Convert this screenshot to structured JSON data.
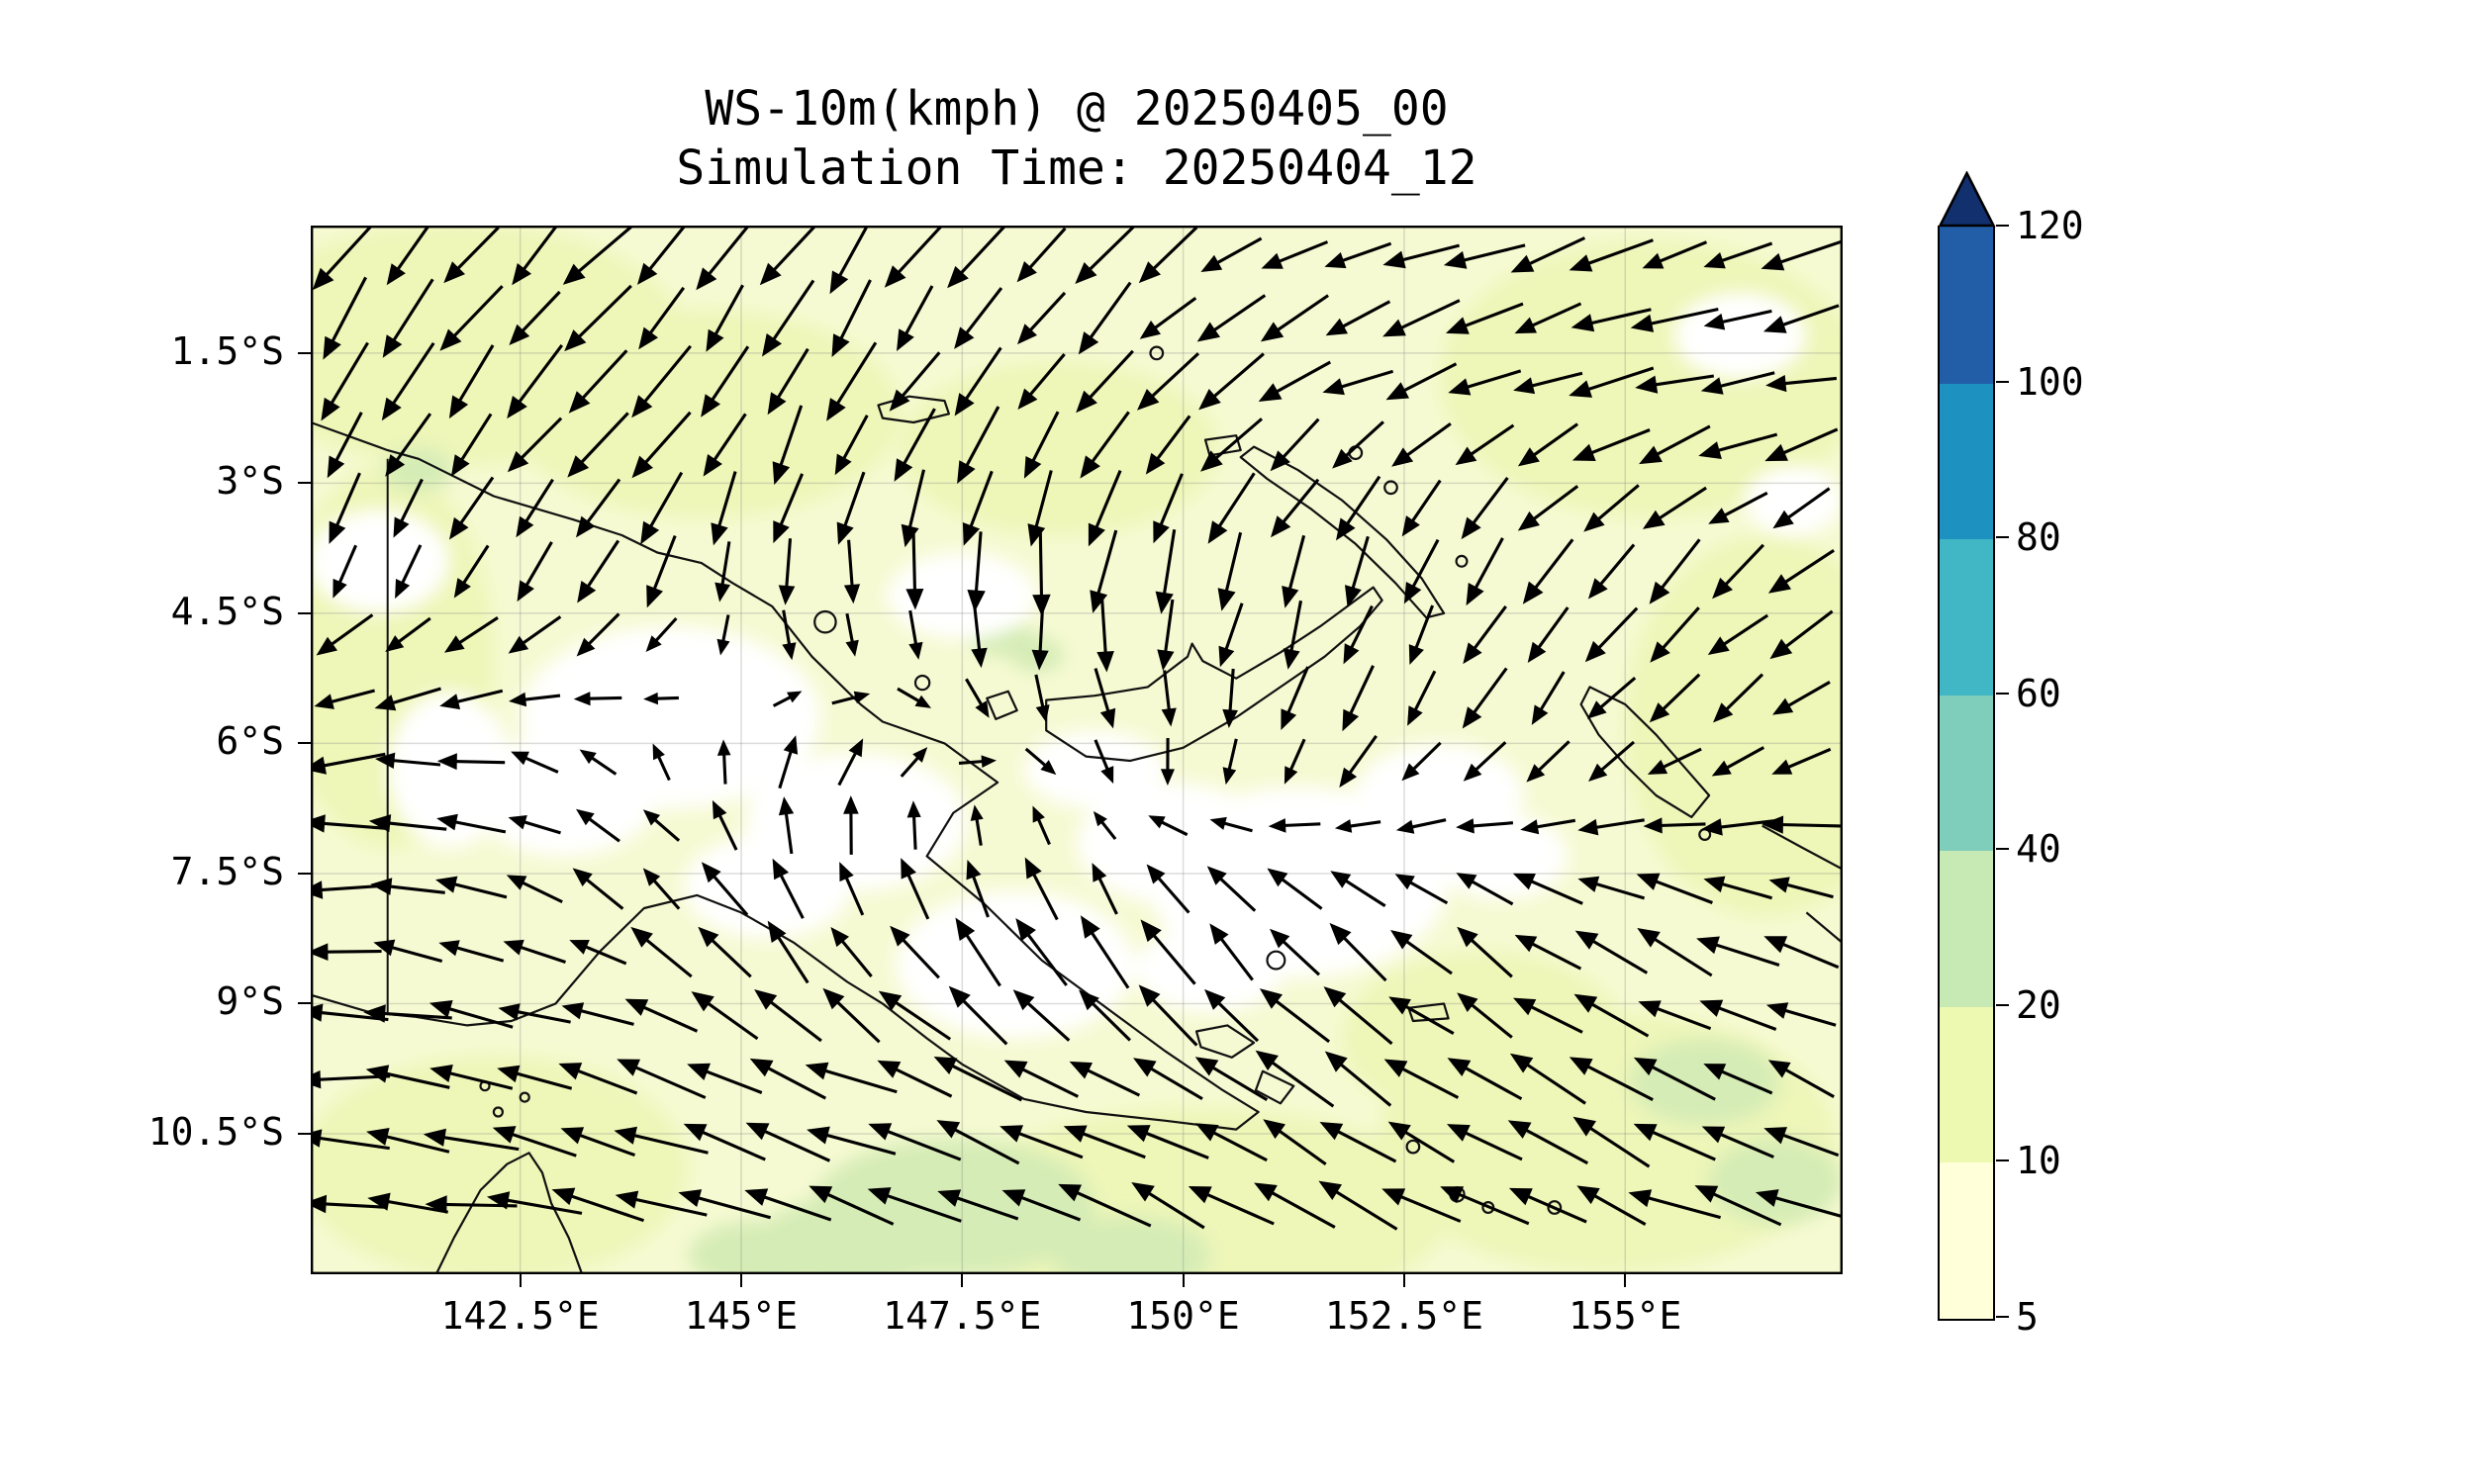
{
  "figure": {
    "title_line1": "WS-10m(kmph) @ 20250405_00",
    "title_line2": "Simulation Time: 20250404_12",
    "background_color": "#ffffff"
  },
  "chart_data": {
    "type": "heatmap",
    "subtype": "wind_speed_filled_contours_with_quiver_vectors",
    "title": "WS-10m(kmph) @ 20250405_00",
    "subtitle": "Simulation Time: 20250404_12",
    "variable": "WS-10m",
    "units": "kmph",
    "valid_time_label": "20250405_00",
    "simulation_time_label": "20250404_12",
    "grid": true,
    "legend_position": "right-colorbar",
    "x_axis": {
      "tick_labels": [
        "142.5°E",
        "145°E",
        "147.5°E",
        "150°E",
        "152.5°E",
        "155°E"
      ],
      "tick_values_deg_east": [
        142.5,
        145,
        147.5,
        150,
        152.5,
        155
      ],
      "range_deg_east": [
        140.13,
        157.46
      ]
    },
    "y_axis": {
      "tick_labels": [
        "1.5°S",
        "3°S",
        "4.5°S",
        "6°S",
        "7.5°S",
        "9°S",
        "10.5°S"
      ],
      "tick_values_deg_south": [
        1.5,
        3,
        4.5,
        6,
        7.5,
        9,
        10.5
      ],
      "range_deg_south": [
        0.03,
        12.12
      ]
    },
    "colorbar": {
      "tick_labels": [
        "5",
        "10",
        "20",
        "40",
        "60",
        "80",
        "100",
        "120"
      ],
      "tick_values": [
        5,
        10,
        20,
        40,
        60,
        80,
        100,
        120
      ],
      "segment_colors_bottom_to_top": [
        "#ffffd9",
        "#edf8b1",
        "#c7e9b4",
        "#7fcdbb",
        "#41b6c4",
        "#1d91c0",
        "#225ea8"
      ],
      "extend_above_color": "#12306e",
      "outline_color": "#000000"
    },
    "map_shading": {
      "base_color": "#f6fad2",
      "band_colors": {
        "below_5": "#ffffff",
        "band_5_10": "#f8fbd7",
        "band_10_20": "#eef6b8",
        "band_20_40": "#d5ecb6"
      },
      "band_10_20_patches_deg": [
        [
          141.8,
          1.4,
          2.6,
          1.4
        ],
        [
          144.6,
          2.2,
          2.2,
          1.2
        ],
        [
          155.3,
          1.8,
          2.4,
          1.6
        ],
        [
          156.6,
          5.8,
          1.6,
          2.2
        ],
        [
          154.8,
          10.6,
          2.6,
          1.5
        ],
        [
          150.2,
          11.4,
          2.8,
          1.2
        ],
        [
          142.2,
          10.9,
          2.2,
          1.3
        ],
        [
          141.0,
          5.0,
          1.2,
          2.2
        ],
        [
          148.6,
          2.6,
          1.8,
          1.0
        ],
        [
          153.4,
          9.4,
          1.6,
          1.0
        ]
      ],
      "band_20_40_patches_deg": [
        [
          147.4,
          11.35,
          1.6,
          0.8
        ],
        [
          146.3,
          11.75,
          1.1,
          0.55
        ],
        [
          141.35,
          2.85,
          0.4,
          0.25
        ],
        [
          147.95,
          4.78,
          0.38,
          0.22
        ],
        [
          148.35,
          4.98,
          0.3,
          0.2
        ],
        [
          155.9,
          9.9,
          0.85,
          0.5
        ],
        [
          156.7,
          11.05,
          0.75,
          0.5
        ],
        [
          149.4,
          11.9,
          0.9,
          0.45
        ],
        [
          145.2,
          11.9,
          0.8,
          0.4
        ]
      ],
      "low_wind_patches_deg": [
        [
          144.2,
          5.7,
          1.7,
          1.05
        ],
        [
          146.3,
          6.9,
          1.25,
          0.8
        ],
        [
          148.1,
          8.55,
          1.35,
          0.85
        ],
        [
          151.3,
          7.6,
          1.7,
          1.1
        ],
        [
          149.9,
          7.15,
          1.1,
          0.7
        ],
        [
          152.9,
          6.6,
          0.95,
          0.6
        ],
        [
          143.0,
          6.6,
          1.05,
          0.7
        ],
        [
          147.5,
          4.3,
          0.85,
          0.5
        ],
        [
          156.3,
          1.3,
          0.75,
          0.5
        ],
        [
          156.9,
          3.2,
          0.55,
          0.4
        ],
        [
          145.3,
          7.65,
          0.95,
          0.6
        ],
        [
          150.3,
          8.6,
          0.85,
          0.5
        ],
        [
          153.6,
          7.3,
          0.75,
          0.5
        ],
        [
          149.0,
          6.3,
          0.8,
          0.45
        ],
        [
          141.7,
          6.3,
          0.7,
          0.9
        ],
        [
          140.9,
          3.9,
          0.8,
          0.6
        ]
      ]
    },
    "wind_vectors": {
      "arrow_color": "#000000",
      "grid_spacing_px": 64,
      "control_lons_deg_east": [
        140.1,
        143,
        146,
        149,
        152,
        155,
        157.5
      ],
      "control_lats_deg_south": [
        0,
        2,
        4,
        6,
        8,
        10,
        12.2
      ],
      "u_east": [
        [
          -0.5,
          -0.55,
          -0.45,
          -0.5,
          -0.65,
          -0.7,
          -0.7
        ],
        [
          -0.4,
          -0.5,
          -0.4,
          -0.45,
          -0.65,
          -0.7,
          -0.7
        ],
        [
          -0.2,
          -0.4,
          0.0,
          -0.1,
          -0.25,
          -0.4,
          -0.5
        ],
        [
          -0.75,
          -0.3,
          0.25,
          0.15,
          -0.25,
          -0.4,
          -0.55
        ],
        [
          -0.8,
          -0.5,
          -0.25,
          -0.35,
          -0.45,
          -0.6,
          -0.7
        ],
        [
          -0.85,
          -0.8,
          -0.8,
          -0.75,
          -0.65,
          -0.7,
          -0.75
        ],
        [
          -0.85,
          -0.9,
          -0.95,
          -0.85,
          -0.75,
          -0.8,
          -0.8
        ]
      ],
      "v_north": [
        [
          -0.6,
          -0.55,
          -0.65,
          -0.5,
          -0.3,
          -0.2,
          -0.15
        ],
        [
          -0.7,
          -0.6,
          -0.65,
          -0.6,
          -0.25,
          -0.2,
          -0.1
        ],
        [
          -0.4,
          -0.5,
          -0.6,
          -0.75,
          -0.65,
          -0.5,
          -0.4
        ],
        [
          -0.1,
          0.15,
          0.3,
          -0.3,
          -0.5,
          -0.4,
          -0.25
        ],
        [
          0.0,
          0.25,
          0.55,
          0.6,
          0.45,
          0.35,
          0.25
        ],
        [
          0.05,
          0.2,
          0.3,
          0.4,
          0.5,
          0.35,
          0.3
        ],
        [
          0.1,
          0.15,
          0.25,
          0.35,
          0.4,
          0.3,
          0.2
        ]
      ]
    }
  }
}
